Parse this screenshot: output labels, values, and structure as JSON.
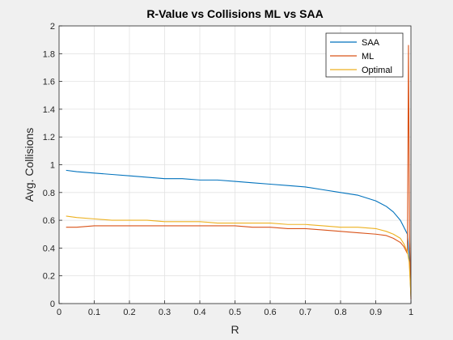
{
  "chart_data": {
    "type": "line",
    "title": "R-Value vs Collisions ML vs SAA",
    "xlabel": "R",
    "ylabel": "Avg. Collisions",
    "xlim": [
      0,
      1
    ],
    "ylim": [
      0,
      2
    ],
    "xticks": [
      "0",
      "0.1",
      "0.2",
      "0.3",
      "0.4",
      "0.5",
      "0.6",
      "0.7",
      "0.8",
      "0.9",
      "1"
    ],
    "yticks": [
      "0",
      "0.2",
      "0.4",
      "0.6",
      "0.8",
      "1",
      "1.2",
      "1.4",
      "1.6",
      "1.8",
      "2"
    ],
    "grid": true,
    "legend_position": "top-right",
    "series": [
      {
        "name": "SAA",
        "color": "#0072BD",
        "x": [
          0.02,
          0.05,
          0.1,
          0.15,
          0.2,
          0.25,
          0.3,
          0.35,
          0.4,
          0.45,
          0.5,
          0.55,
          0.6,
          0.65,
          0.7,
          0.75,
          0.8,
          0.85,
          0.9,
          0.93,
          0.95,
          0.97,
          0.98,
          0.99,
          0.995,
          1.0
        ],
        "values": [
          0.96,
          0.95,
          0.94,
          0.93,
          0.92,
          0.91,
          0.9,
          0.9,
          0.89,
          0.89,
          0.88,
          0.87,
          0.86,
          0.85,
          0.84,
          0.82,
          0.8,
          0.78,
          0.74,
          0.7,
          0.66,
          0.6,
          0.55,
          0.5,
          0.35,
          0.05
        ]
      },
      {
        "name": "ML",
        "color": "#D95319",
        "x": [
          0.02,
          0.05,
          0.1,
          0.15,
          0.2,
          0.25,
          0.3,
          0.35,
          0.4,
          0.45,
          0.5,
          0.55,
          0.6,
          0.65,
          0.7,
          0.75,
          0.8,
          0.85,
          0.9,
          0.93,
          0.95,
          0.97,
          0.98,
          0.99,
          0.993,
          0.996,
          1.0
        ],
        "values": [
          0.55,
          0.55,
          0.56,
          0.56,
          0.56,
          0.56,
          0.56,
          0.56,
          0.56,
          0.56,
          0.56,
          0.55,
          0.55,
          0.54,
          0.54,
          0.53,
          0.52,
          0.51,
          0.5,
          0.49,
          0.47,
          0.44,
          0.41,
          0.36,
          1.86,
          0.5,
          0.03
        ]
      },
      {
        "name": "Optimal",
        "color": "#EDB120",
        "x": [
          0.02,
          0.05,
          0.1,
          0.15,
          0.2,
          0.25,
          0.3,
          0.35,
          0.4,
          0.45,
          0.5,
          0.55,
          0.6,
          0.65,
          0.7,
          0.75,
          0.8,
          0.85,
          0.9,
          0.93,
          0.95,
          0.97,
          0.98,
          0.99,
          0.995,
          1.0
        ],
        "values": [
          0.63,
          0.62,
          0.61,
          0.6,
          0.6,
          0.6,
          0.59,
          0.59,
          0.59,
          0.58,
          0.58,
          0.58,
          0.58,
          0.57,
          0.57,
          0.56,
          0.55,
          0.55,
          0.54,
          0.52,
          0.5,
          0.47,
          0.43,
          0.37,
          0.3,
          0.05
        ]
      }
    ]
  }
}
